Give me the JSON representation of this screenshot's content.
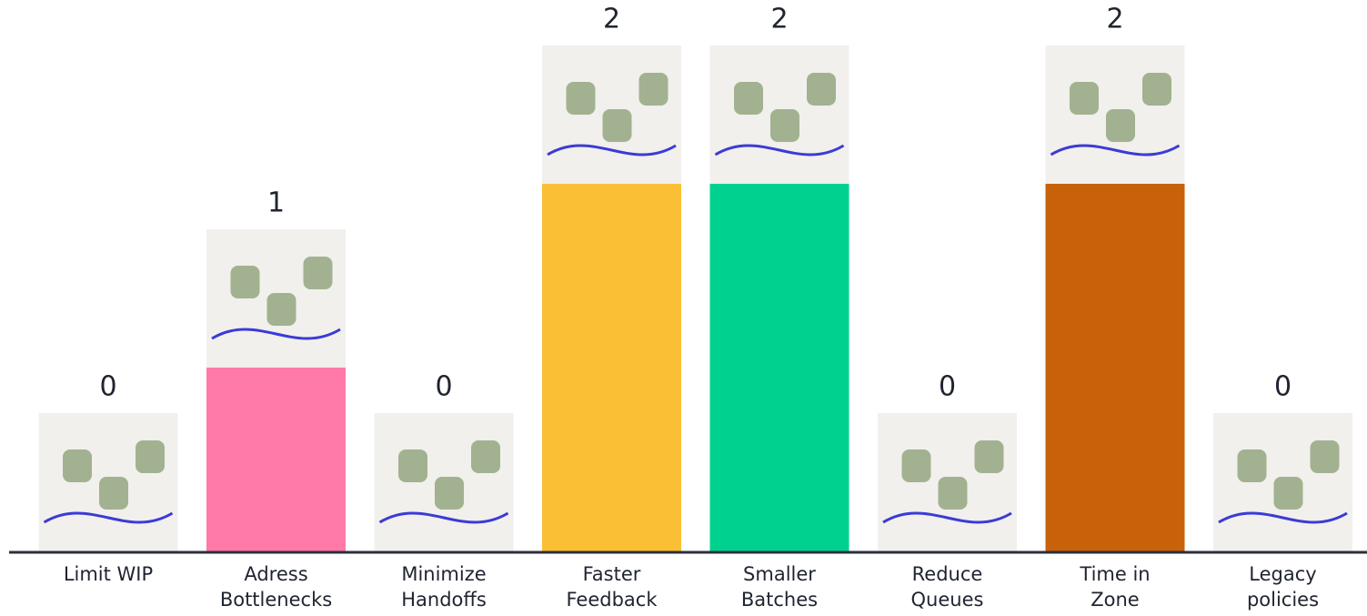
{
  "chart_data": {
    "type": "bar",
    "categories": [
      [
        "Limit WIP"
      ],
      [
        "Adress",
        "Bottlenecks"
      ],
      [
        "Minimize",
        "Handoffs"
      ],
      [
        "Faster",
        "Feedback"
      ],
      [
        "Smaller",
        "Batches"
      ],
      [
        "Reduce",
        "Queues"
      ],
      [
        "Time in",
        "Zone"
      ],
      [
        "Legacy",
        "policies"
      ]
    ],
    "values": [
      0,
      1,
      0,
      2,
      2,
      0,
      2,
      0
    ],
    "colors": [
      "#ff7aa8",
      "#ff7aa8",
      "#fbbf36",
      "#fbbf36",
      "#00d18f",
      "#c8620a",
      "#c8620a",
      "#ff7aa8"
    ]
  }
}
